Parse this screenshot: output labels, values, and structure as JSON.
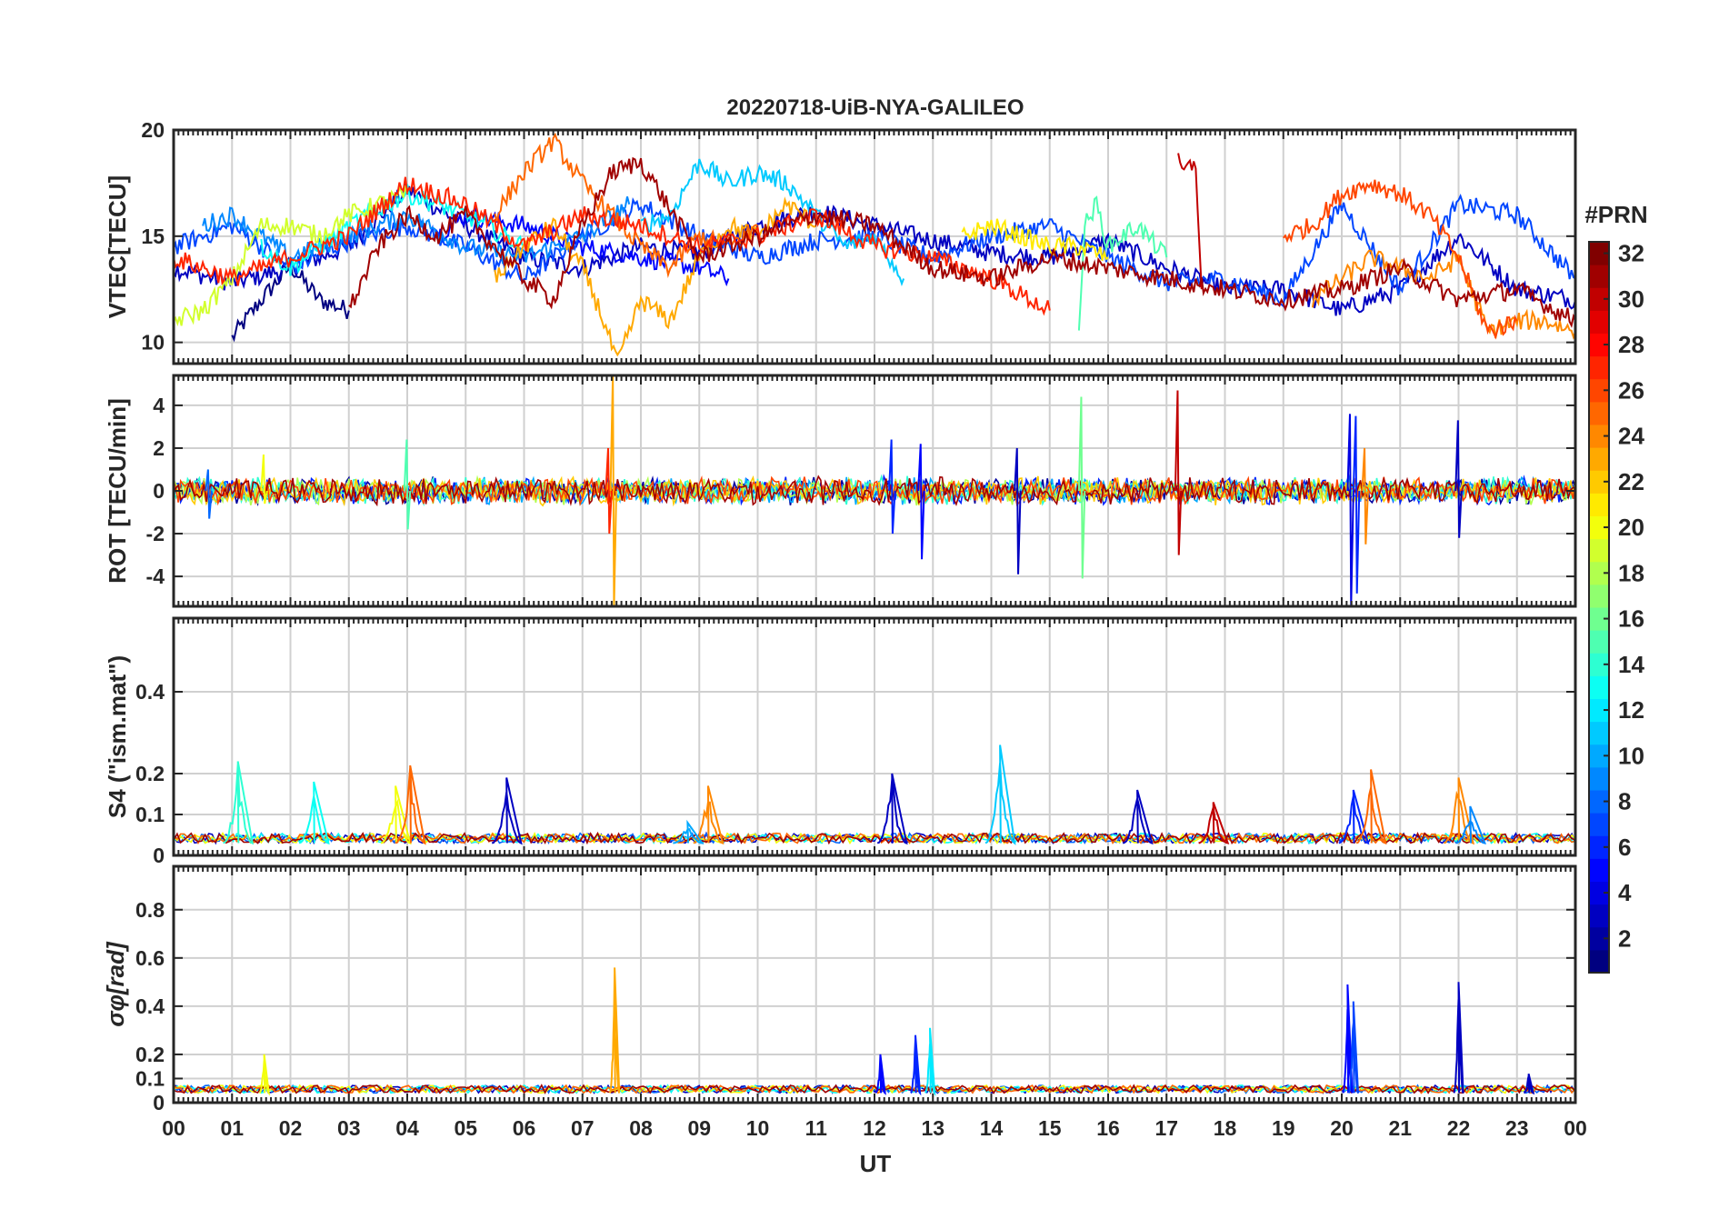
{
  "chart_data": [
    {
      "type": "line",
      "panel": "vtec",
      "title": "20220718-UiB-NYA-GALILEO",
      "ylabel": "VTEC[TECU]",
      "ylim": [
        9,
        20
      ],
      "yticks": [
        "10",
        "15",
        "20"
      ],
      "grid": true,
      "series": [
        {
          "prn": 1,
          "x": [
            1.0,
            1.5,
            2.0,
            2.5,
            3.0
          ],
          "y": [
            10.2,
            12.0,
            13.6,
            12.0,
            11.5
          ]
        },
        {
          "prn": 3,
          "x": [
            0.0,
            1.0,
            2.0,
            3.0,
            4.0,
            5.0,
            6.0,
            7.0,
            8.0,
            9.0,
            10.0,
            11.0,
            12.0,
            13.0,
            14.0,
            15.0,
            16.0,
            17.0,
            18.0,
            19.0,
            20.0,
            21.0,
            22.0,
            23.0,
            24.0
          ],
          "y": [
            13.5,
            12.8,
            13.5,
            14.5,
            17.2,
            15.5,
            14.0,
            13.5,
            14.5,
            14.2,
            15.5,
            16.2,
            15.5,
            14.8,
            14.2,
            14.0,
            14.8,
            13.5,
            12.5,
            12.5,
            11.5,
            12.5,
            15.0,
            12.5,
            12.0
          ]
        },
        {
          "prn": 5,
          "x": [
            4.5,
            5.0,
            6.0,
            7.0,
            8.0,
            9.0,
            9.5
          ],
          "y": [
            15.0,
            16.0,
            15.5,
            14.5,
            14.0,
            13.5,
            13.0
          ]
        },
        {
          "prn": 7,
          "x": [
            0.0,
            1.0,
            2.0,
            3.0,
            4.0,
            5.0,
            6.0,
            7.0,
            8.0,
            9.0,
            10.0,
            11.0,
            12.0,
            13.0,
            14.0,
            15.0,
            16.0,
            17.0,
            18.0,
            19.0,
            20.0,
            21.0,
            22.0,
            23.0,
            24.0
          ],
          "y": [
            14.5,
            15.5,
            13.5,
            14.8,
            15.5,
            14.5,
            13.0,
            15.0,
            16.5,
            15.0,
            14.0,
            14.8,
            15.0,
            14.0,
            15.0,
            15.5,
            14.0,
            12.8,
            13.0,
            12.0,
            16.5,
            12.5,
            16.5,
            16.0,
            13.0
          ]
        },
        {
          "prn": 9,
          "x": [
            0.5,
            1.0,
            2.0,
            3.0,
            4.0,
            5.0,
            6.0,
            7.0,
            7.8
          ],
          "y": [
            15.5,
            16.0,
            14.0,
            15.0,
            16.0,
            14.5,
            14.0,
            15.0,
            16.5
          ]
        },
        {
          "prn": 11,
          "x": [
            8.0,
            8.5,
            9.0,
            9.5,
            10.0,
            10.5,
            11.0,
            11.5,
            12.0,
            12.5
          ],
          "y": [
            15.5,
            16.0,
            18.5,
            17.5,
            18.0,
            17.5,
            16.0,
            14.5,
            15.0,
            13.0
          ]
        },
        {
          "prn": 13,
          "x": [
            1.5,
            2.0,
            3.0,
            4.0,
            5.0,
            6.0
          ],
          "y": [
            14.5,
            13.5,
            15.5,
            17.0,
            16.0,
            14.5
          ]
        },
        {
          "prn": 15,
          "x": [
            15.5,
            15.6,
            15.8,
            16.0,
            16.5,
            17.0
          ],
          "y": [
            11.0,
            15.5,
            16.5,
            14.5,
            15.5,
            14.0
          ]
        },
        {
          "prn": 19,
          "x": [
            0.0,
            0.5,
            1.0,
            1.5,
            2.0,
            2.5,
            3.0,
            3.5,
            4.0
          ],
          "y": [
            11.0,
            11.5,
            13.0,
            15.5,
            15.5,
            15.0,
            16.0,
            16.5,
            17.0
          ]
        },
        {
          "prn": 21,
          "x": [
            13.5,
            14.0,
            14.5,
            15.0,
            15.5,
            16.0
          ],
          "y": [
            15.0,
            15.5,
            15.0,
            14.5,
            14.5,
            14.0
          ]
        },
        {
          "prn": 23,
          "x": [
            5.5,
            6.0,
            6.5,
            7.0,
            7.3,
            7.6,
            8.0,
            8.5,
            9.0,
            9.5,
            10.0,
            10.5,
            11.0
          ],
          "y": [
            13.0,
            14.5,
            15.5,
            13.5,
            11.5,
            9.0,
            12.0,
            11.0,
            14.0,
            15.5,
            15.0,
            16.5,
            15.5
          ]
        },
        {
          "prn": 24,
          "x": [
            19.5,
            20.0,
            20.5,
            21.0,
            21.5,
            22.0,
            22.5,
            23.0,
            23.5,
            24.0
          ],
          "y": [
            12.0,
            13.0,
            14.0,
            13.5,
            13.0,
            14.0,
            10.5,
            11.0,
            11.0,
            10.5
          ]
        },
        {
          "prn": 25,
          "x": [
            5.5,
            6.0,
            6.5,
            7.0,
            7.5,
            8.0,
            8.5,
            9.0,
            9.5,
            10.0
          ],
          "y": [
            16.0,
            18.0,
            19.5,
            17.5,
            16.0,
            14.5,
            13.5,
            15.0,
            14.5,
            15.5
          ]
        },
        {
          "prn": 26,
          "x": [
            19.0,
            19.5,
            20.0,
            20.5,
            21.0,
            21.5,
            22.0,
            22.5,
            23.0
          ],
          "y": [
            15.0,
            15.5,
            17.0,
            17.5,
            17.0,
            16.0,
            14.0,
            10.5,
            11.0
          ]
        },
        {
          "prn": 27,
          "x": [
            0.0,
            1.0,
            2.0,
            3.0,
            4.0,
            5.0,
            6.0,
            7.0,
            8.0,
            9.0,
            10.0,
            11.0,
            12.0,
            13.0,
            14.0,
            15.0
          ],
          "y": [
            14.0,
            13.0,
            14.0,
            15.0,
            17.5,
            16.5,
            14.5,
            16.0,
            15.5,
            14.5,
            15.0,
            16.0,
            14.5,
            14.0,
            13.0,
            11.5
          ]
        },
        {
          "prn": 30,
          "x": [
            17.2,
            17.3,
            17.5,
            17.6
          ],
          "y": [
            18.5,
            18.0,
            18.5,
            12.5
          ]
        },
        {
          "prn": 31,
          "x": [
            3.0,
            3.5,
            4.0,
            4.5,
            5.0,
            5.5,
            6.0,
            6.5,
            7.0,
            7.5,
            8.0,
            9.0,
            10.0,
            11.0,
            12.0,
            13.0,
            14.0,
            15.0,
            16.0,
            17.0,
            18.0,
            19.0,
            20.0,
            21.0,
            22.0,
            23.0,
            24.0
          ],
          "y": [
            11.5,
            14.5,
            16.0,
            15.0,
            16.0,
            14.5,
            13.0,
            12.0,
            15.5,
            18.0,
            18.5,
            14.0,
            15.0,
            16.0,
            15.5,
            13.5,
            13.0,
            14.0,
            13.5,
            13.0,
            12.5,
            12.0,
            12.5,
            13.5,
            12.0,
            12.5,
            11.0
          ]
        }
      ]
    },
    {
      "type": "line",
      "panel": "rot",
      "ylabel": "ROT [TECU/min]",
      "ylim": [
        -5.4,
        5.4
      ],
      "yticks": [
        "4",
        "2",
        "0",
        "-2",
        "-4"
      ],
      "grid": true,
      "spikes": [
        {
          "prn": 23,
          "x": 7.53,
          "y": [
            -5.4,
            5.4
          ]
        },
        {
          "prn": 27,
          "x": 7.45,
          "y": [
            -2.0,
            2.0
          ]
        },
        {
          "prn": 6,
          "x": 12.3,
          "y": [
            -2.0,
            2.4
          ]
        },
        {
          "prn": 5,
          "x": 12.8,
          "y": [
            -3.2,
            2.2
          ]
        },
        {
          "prn": 3,
          "x": 14.45,
          "y": [
            -3.9,
            2.0
          ]
        },
        {
          "prn": 16,
          "x": 15.55,
          "y": [
            -4.1,
            4.4
          ]
        },
        {
          "prn": 30,
          "x": 17.2,
          "y": [
            -3.0,
            4.7
          ]
        },
        {
          "prn": 4,
          "x": 20.15,
          "y": [
            -5.4,
            3.6
          ]
        },
        {
          "prn": 6,
          "x": 20.25,
          "y": [
            -4.8,
            3.5
          ]
        },
        {
          "prn": 24,
          "x": 20.4,
          "y": [
            -2.5,
            2.0
          ]
        },
        {
          "prn": 3,
          "x": 22.0,
          "y": [
            -2.2,
            3.3
          ]
        },
        {
          "prn": 8,
          "x": 0.6,
          "y": [
            -1.3,
            1.0
          ]
        },
        {
          "prn": 20,
          "x": 1.55,
          "y": [
            -0.6,
            1.7
          ]
        },
        {
          "prn": 15,
          "x": 4.0,
          "y": [
            -1.8,
            2.4
          ]
        }
      ]
    },
    {
      "type": "line",
      "panel": "s4",
      "ylabel": "S4 (\"ism.mat\")",
      "ylim": [
        0,
        0.58
      ],
      "yticks": [
        "0.4",
        "0.2",
        "0.1",
        "0"
      ],
      "grid": true,
      "bursts": [
        {
          "prn": 14,
          "x": 1.1,
          "peak": 0.23
        },
        {
          "prn": 13,
          "x": 2.4,
          "peak": 0.18
        },
        {
          "prn": 20,
          "x": 3.8,
          "peak": 0.17
        },
        {
          "prn": 25,
          "x": 4.05,
          "peak": 0.22
        },
        {
          "prn": 3,
          "x": 5.7,
          "peak": 0.19
        },
        {
          "prn": 24,
          "x": 9.15,
          "peak": 0.17
        },
        {
          "prn": 10,
          "x": 8.8,
          "peak": 0.08
        },
        {
          "prn": 3,
          "x": 12.3,
          "peak": 0.2
        },
        {
          "prn": 11,
          "x": 14.15,
          "peak": 0.27
        },
        {
          "prn": 3,
          "x": 16.5,
          "peak": 0.16
        },
        {
          "prn": 30,
          "x": 17.8,
          "peak": 0.13
        },
        {
          "prn": 6,
          "x": 20.2,
          "peak": 0.16
        },
        {
          "prn": 25,
          "x": 20.5,
          "peak": 0.21
        },
        {
          "prn": 24,
          "x": 22.0,
          "peak": 0.19
        },
        {
          "prn": 9,
          "x": 22.2,
          "peak": 0.12
        }
      ]
    },
    {
      "type": "line",
      "panel": "sigma_phi",
      "ylabel": "σφ[rad]",
      "ylim": [
        0,
        0.98
      ],
      "yticks": [
        "0.8",
        "0.6",
        "0.4",
        "0.2",
        "0.1",
        "0"
      ],
      "grid": true,
      "bursts": [
        {
          "prn": 20,
          "x": 1.55,
          "peak": 0.2
        },
        {
          "prn": 23,
          "x": 7.55,
          "peak": 0.56
        },
        {
          "prn": 5,
          "x": 12.1,
          "peak": 0.2
        },
        {
          "prn": 6,
          "x": 12.7,
          "peak": 0.28
        },
        {
          "prn": 12,
          "x": 12.95,
          "peak": 0.31
        },
        {
          "prn": 5,
          "x": 20.1,
          "peak": 0.49
        },
        {
          "prn": 7,
          "x": 20.2,
          "peak": 0.42
        },
        {
          "prn": 3,
          "x": 22.0,
          "peak": 0.5
        },
        {
          "prn": 3,
          "x": 23.2,
          "peak": 0.12
        }
      ]
    }
  ],
  "x_axis": {
    "label": "UT",
    "range": [
      0,
      24
    ],
    "ticks": [
      "00",
      "01",
      "02",
      "03",
      "04",
      "05",
      "06",
      "07",
      "08",
      "09",
      "10",
      "11",
      "12",
      "13",
      "14",
      "15",
      "16",
      "17",
      "18",
      "19",
      "20",
      "21",
      "22",
      "23",
      "00"
    ]
  },
  "colorbar": {
    "title": "#PRN",
    "range": [
      1,
      32
    ],
    "ticks": [
      "32",
      "30",
      "28",
      "26",
      "24",
      "22",
      "20",
      "18",
      "16",
      "14",
      "12",
      "10",
      "8",
      "6",
      "4",
      "2"
    ],
    "colormap": "jet"
  }
}
